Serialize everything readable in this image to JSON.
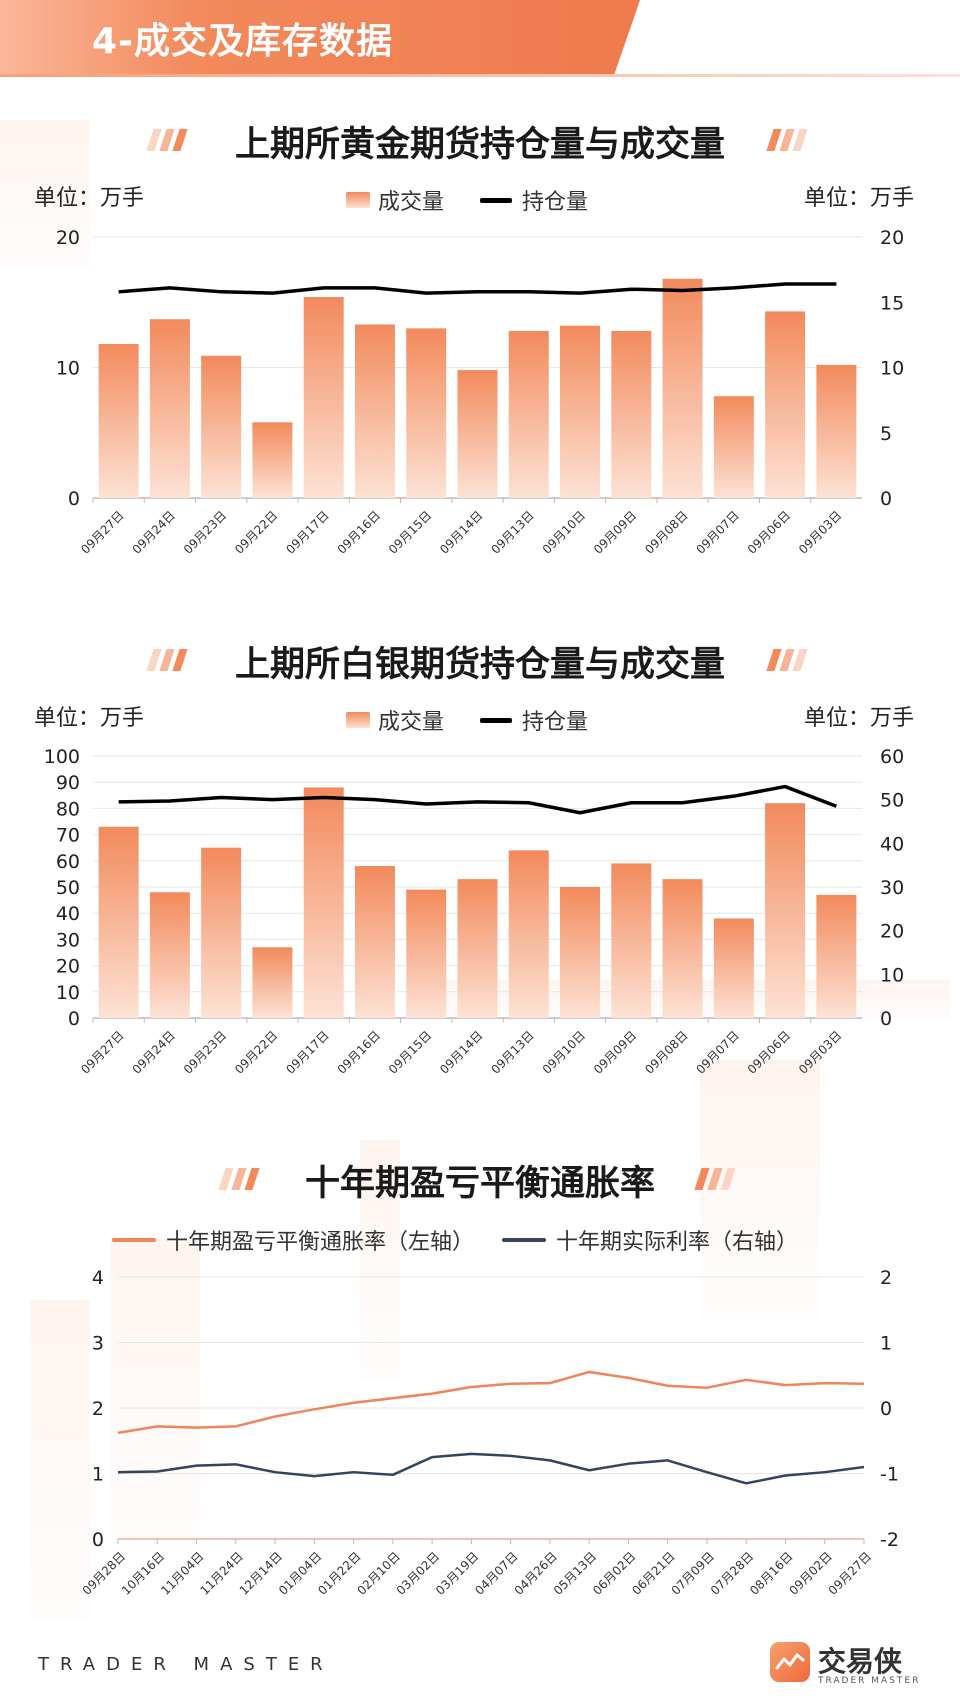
{
  "header": {
    "title": "4-成交及库存数据"
  },
  "footer": {
    "brand_left": "TRADER MASTER",
    "logo_cn": "交易侠",
    "logo_en": "TRADER MASTER"
  },
  "colors": {
    "accent": "#f07a4c",
    "bar_top": "#f28a5c",
    "bar_bottom": "#fde2d5",
    "open_line": "#000000",
    "breakeven_line": "#f0845a",
    "real_rate_line": "#34445f"
  },
  "gold": {
    "title": "上期所黄金期货持仓量与成交量",
    "unit_left": "单位：万手",
    "unit_right": "单位：万手",
    "legend_bar": "成交量",
    "legend_line": "持仓量"
  },
  "silver": {
    "title": "上期所白银期货持仓量与成交量",
    "unit_left": "单位：万手",
    "unit_right": "单位：万手",
    "legend_bar": "成交量",
    "legend_line": "持仓量"
  },
  "infl": {
    "title": "十年期盈亏平衡通胀率",
    "legend_1": "十年期盈亏平衡通胀率（左轴）",
    "legend_2": "十年期实际利率（右轴）"
  },
  "chart_data": [
    {
      "type": "bar",
      "title": "上期所黄金期货持仓量与成交量",
      "categories": [
        "09月27日",
        "09月24日",
        "09月23日",
        "09月22日",
        "09月17日",
        "09月16日",
        "09月15日",
        "09月14日",
        "09月13日",
        "09月10日",
        "09月09日",
        "09月08日",
        "09月07日",
        "09月06日",
        "09月03日"
      ],
      "series": [
        {
          "name": "成交量",
          "type": "bar",
          "axis": "left",
          "values": [
            11.8,
            13.7,
            10.9,
            5.8,
            15.4,
            13.3,
            13.0,
            9.8,
            12.8,
            13.2,
            12.8,
            16.8,
            7.8,
            14.3,
            10.2
          ]
        },
        {
          "name": "持仓量",
          "type": "line",
          "axis": "right",
          "values": [
            15.8,
            16.1,
            15.8,
            15.7,
            16.1,
            16.1,
            15.7,
            15.8,
            15.8,
            15.7,
            16.0,
            15.9,
            16.1,
            16.4,
            16.4
          ]
        }
      ],
      "ylim_left": [
        0,
        20
      ],
      "yticks_left": [
        0,
        10,
        20
      ],
      "ylim_right": [
        0,
        20
      ],
      "yticks_right": [
        0,
        5,
        10,
        15,
        20
      ],
      "legend": "top-center",
      "grid": true
    },
    {
      "type": "bar",
      "title": "上期所白银期货持仓量与成交量",
      "categories": [
        "09月27日",
        "09月24日",
        "09月23日",
        "09月22日",
        "09月17日",
        "09月16日",
        "09月15日",
        "09月14日",
        "09月13日",
        "09月10日",
        "09月09日",
        "09月08日",
        "09月07日",
        "09月06日",
        "09月03日"
      ],
      "series": [
        {
          "name": "成交量",
          "type": "bar",
          "axis": "left",
          "values": [
            73,
            48,
            65,
            27,
            88,
            58,
            49,
            53,
            64,
            50,
            59,
            53,
            38,
            82,
            47
          ]
        },
        {
          "name": "持仓量",
          "type": "line",
          "axis": "right",
          "values": [
            49.5,
            49.7,
            50.5,
            50.0,
            50.5,
            50.0,
            49.0,
            49.5,
            49.3,
            47.0,
            49.3,
            49.3,
            50.8,
            53.0,
            48.5
          ]
        }
      ],
      "ylim_left": [
        0,
        100
      ],
      "yticks_left": [
        0,
        10,
        20,
        30,
        40,
        50,
        60,
        70,
        80,
        90,
        100
      ],
      "ylim_right": [
        0,
        60
      ],
      "yticks_right": [
        0,
        10,
        20,
        30,
        40,
        50,
        60
      ],
      "legend": "top-center",
      "grid": true
    },
    {
      "type": "line",
      "title": "十年期盈亏平衡通胀率",
      "x": [
        "09月28日",
        "10月16日",
        "11月04日",
        "11月24日",
        "12月14日",
        "01月04日",
        "01月22日",
        "02月10日",
        "03月02日",
        "03月19日",
        "04月07日",
        "04月26日",
        "05月13日",
        "06月02日",
        "06月21日",
        "07月09日",
        "07月28日",
        "08月16日",
        "09月02日",
        "09月27日"
      ],
      "series": [
        {
          "name": "十年期盈亏平衡通胀率（左轴）",
          "axis": "left",
          "values": [
            1.62,
            1.72,
            1.7,
            1.72,
            1.87,
            1.98,
            2.08,
            2.15,
            2.22,
            2.32,
            2.37,
            2.38,
            2.55,
            2.46,
            2.34,
            2.31,
            2.43,
            2.35,
            2.38,
            2.37
          ]
        },
        {
          "name": "十年期实际利率（右轴）",
          "axis": "right",
          "values": [
            -0.98,
            -0.97,
            -0.88,
            -0.86,
            -0.98,
            -1.04,
            -0.98,
            -1.02,
            -0.75,
            -0.7,
            -0.73,
            -0.8,
            -0.95,
            -0.85,
            -0.8,
            -0.98,
            -1.15,
            -1.03,
            -0.98,
            -0.9
          ]
        }
      ],
      "ylim_left": [
        0,
        4
      ],
      "yticks_left": [
        0,
        1,
        2,
        3,
        4
      ],
      "ylim_right": [
        -2,
        2
      ],
      "yticks_right": [
        -2,
        -1,
        0,
        1,
        2
      ],
      "legend": "top-center",
      "grid": true
    }
  ]
}
